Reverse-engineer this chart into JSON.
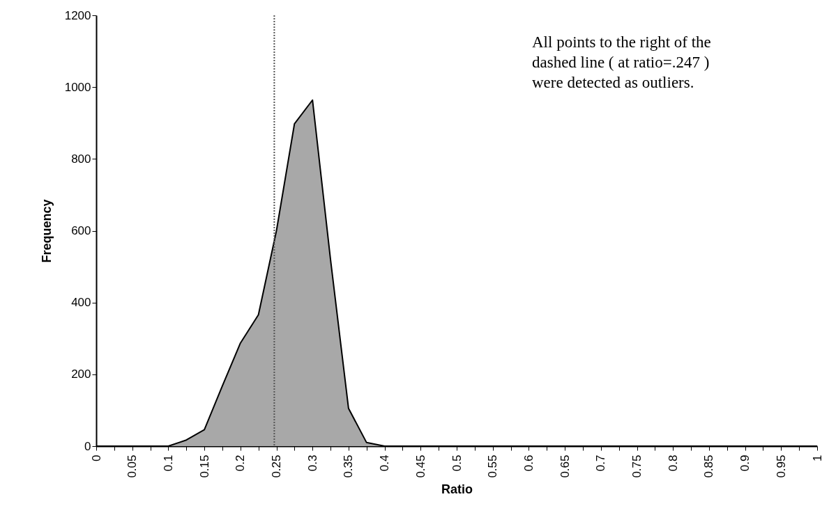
{
  "chart_data": {
    "type": "area",
    "xlabel": "Ratio",
    "ylabel": "Frequency",
    "x": [
      0,
      0.025,
      0.05,
      0.075,
      0.1,
      0.125,
      0.15,
      0.175,
      0.2,
      0.225,
      0.25,
      0.275,
      0.3,
      0.325,
      0.35,
      0.375,
      0.4,
      0.425,
      0.45,
      0.475,
      0.5,
      0.525,
      0.55,
      0.575,
      0.6,
      0.625,
      0.65,
      0.675,
      0.7,
      0.725,
      0.75,
      0.775,
      0.8,
      0.825,
      0.85,
      0.875,
      0.9,
      0.925,
      0.95,
      0.975,
      1
    ],
    "series": [
      {
        "color": "#a8a8a8",
        "values": [
          0,
          0,
          0,
          0,
          0,
          17,
          46,
          168,
          287,
          366,
          600,
          898,
          964,
          520,
          105,
          10,
          0,
          0,
          0,
          0,
          0,
          0,
          0,
          0,
          0,
          0,
          0,
          0,
          0,
          0,
          0,
          0,
          0,
          0,
          0,
          0,
          0,
          0,
          0,
          0,
          0
        ]
      }
    ],
    "xlim": [
      0,
      1
    ],
    "xticks": [
      0,
      {
        "value": 0.025,
        "label": null
      },
      0.05,
      {
        "value": 0.075,
        "label": null
      },
      0.1,
      {
        "value": 0.125,
        "label": null
      },
      0.15,
      {
        "value": 0.175,
        "label": null
      },
      0.2,
      {
        "value": 0.225,
        "label": null
      },
      0.25,
      {
        "value": 0.275,
        "label": null
      },
      0.3,
      {
        "value": 0.325,
        "label": null
      },
      0.35,
      {
        "value": 0.375,
        "label": null
      },
      0.4,
      {
        "value": 0.425,
        "label": null
      },
      0.45,
      {
        "value": 0.475,
        "label": null
      },
      0.5,
      {
        "value": 0.525,
        "label": null
      },
      0.55,
      {
        "value": 0.575,
        "label": null
      },
      0.6,
      {
        "value": 0.625,
        "label": null
      },
      0.65,
      {
        "value": 0.675,
        "label": null
      },
      0.7,
      {
        "value": 0.725,
        "label": null
      },
      0.75,
      {
        "value": 0.775,
        "label": null
      },
      0.8,
      {
        "value": 0.825,
        "label": null
      },
      0.85,
      {
        "value": 0.875,
        "label": null
      },
      0.9,
      {
        "value": 0.925,
        "label": null
      },
      0.95,
      {
        "value": 0.975,
        "label": null
      },
      1
    ],
    "ylim": [
      0,
      1200
    ],
    "yticks": [
      0,
      200,
      400,
      600,
      800,
      1000,
      1200
    ],
    "ref_lines": [
      {
        "axis": "x",
        "value": 0.247,
        "line_style": "dotted",
        "color": "#555555"
      }
    ],
    "annotations": [
      "All points to the right of the dashed line ( at ratio=.247 ) were detected as outliers."
    ]
  }
}
